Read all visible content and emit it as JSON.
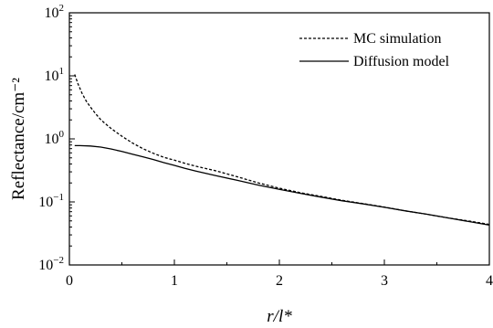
{
  "chart_data": {
    "type": "line",
    "title": "",
    "xlabel": "r/l*",
    "ylabel": "Reflectance/cm⁻²",
    "xlim": [
      0,
      4
    ],
    "ylim": [
      0.01,
      100
    ],
    "yscale": "log",
    "grid": false,
    "legend": "top-right",
    "x_ticks": [
      "0",
      "1",
      "2",
      "3",
      "4"
    ],
    "y_ticks": [
      {
        "value": 0.01,
        "base": "10",
        "exp": "−2"
      },
      {
        "value": 0.1,
        "base": "10",
        "exp": "−1"
      },
      {
        "value": 1,
        "base": "10",
        "exp": "0"
      },
      {
        "value": 10,
        "base": "10",
        "exp": "1"
      },
      {
        "value": 100,
        "base": "10",
        "exp": "2"
      }
    ],
    "series": [
      {
        "name": "MC simulation",
        "style": "dashed",
        "color": "#000000",
        "x": [
          0.05,
          0.08,
          0.12,
          0.16,
          0.2,
          0.25,
          0.3,
          0.35,
          0.4,
          0.5,
          0.6,
          0.7,
          0.8,
          0.9,
          1.0,
          1.1,
          1.2,
          1.4,
          1.6,
          1.8,
          2.0,
          2.2,
          2.4,
          2.6,
          2.8,
          3.0,
          3.2,
          3.4,
          3.6,
          3.8,
          4.0
        ],
        "y": [
          10.5,
          7.6,
          5.3,
          4.0,
          3.2,
          2.5,
          2.0,
          1.7,
          1.45,
          1.1,
          0.86,
          0.7,
          0.59,
          0.51,
          0.46,
          0.41,
          0.37,
          0.31,
          0.25,
          0.2,
          0.165,
          0.14,
          0.122,
          0.106,
          0.094,
          0.083,
          0.072,
          0.064,
          0.056,
          0.05,
          0.044
        ]
      },
      {
        "name": "Diffusion model",
        "style": "solid",
        "color": "#000000",
        "x": [
          0.05,
          0.1,
          0.2,
          0.3,
          0.4,
          0.5,
          0.6,
          0.7,
          0.8,
          0.9,
          1.0,
          1.1,
          1.2,
          1.4,
          1.6,
          1.8,
          2.0,
          2.2,
          2.4,
          2.6,
          2.8,
          3.0,
          3.2,
          3.4,
          3.6,
          3.8,
          4.0
        ],
        "y": [
          0.78,
          0.78,
          0.77,
          0.74,
          0.69,
          0.63,
          0.57,
          0.52,
          0.47,
          0.42,
          0.38,
          0.34,
          0.31,
          0.26,
          0.22,
          0.185,
          0.158,
          0.137,
          0.119,
          0.104,
          0.093,
          0.082,
          0.072,
          0.064,
          0.056,
          0.049,
          0.043
        ]
      }
    ]
  }
}
